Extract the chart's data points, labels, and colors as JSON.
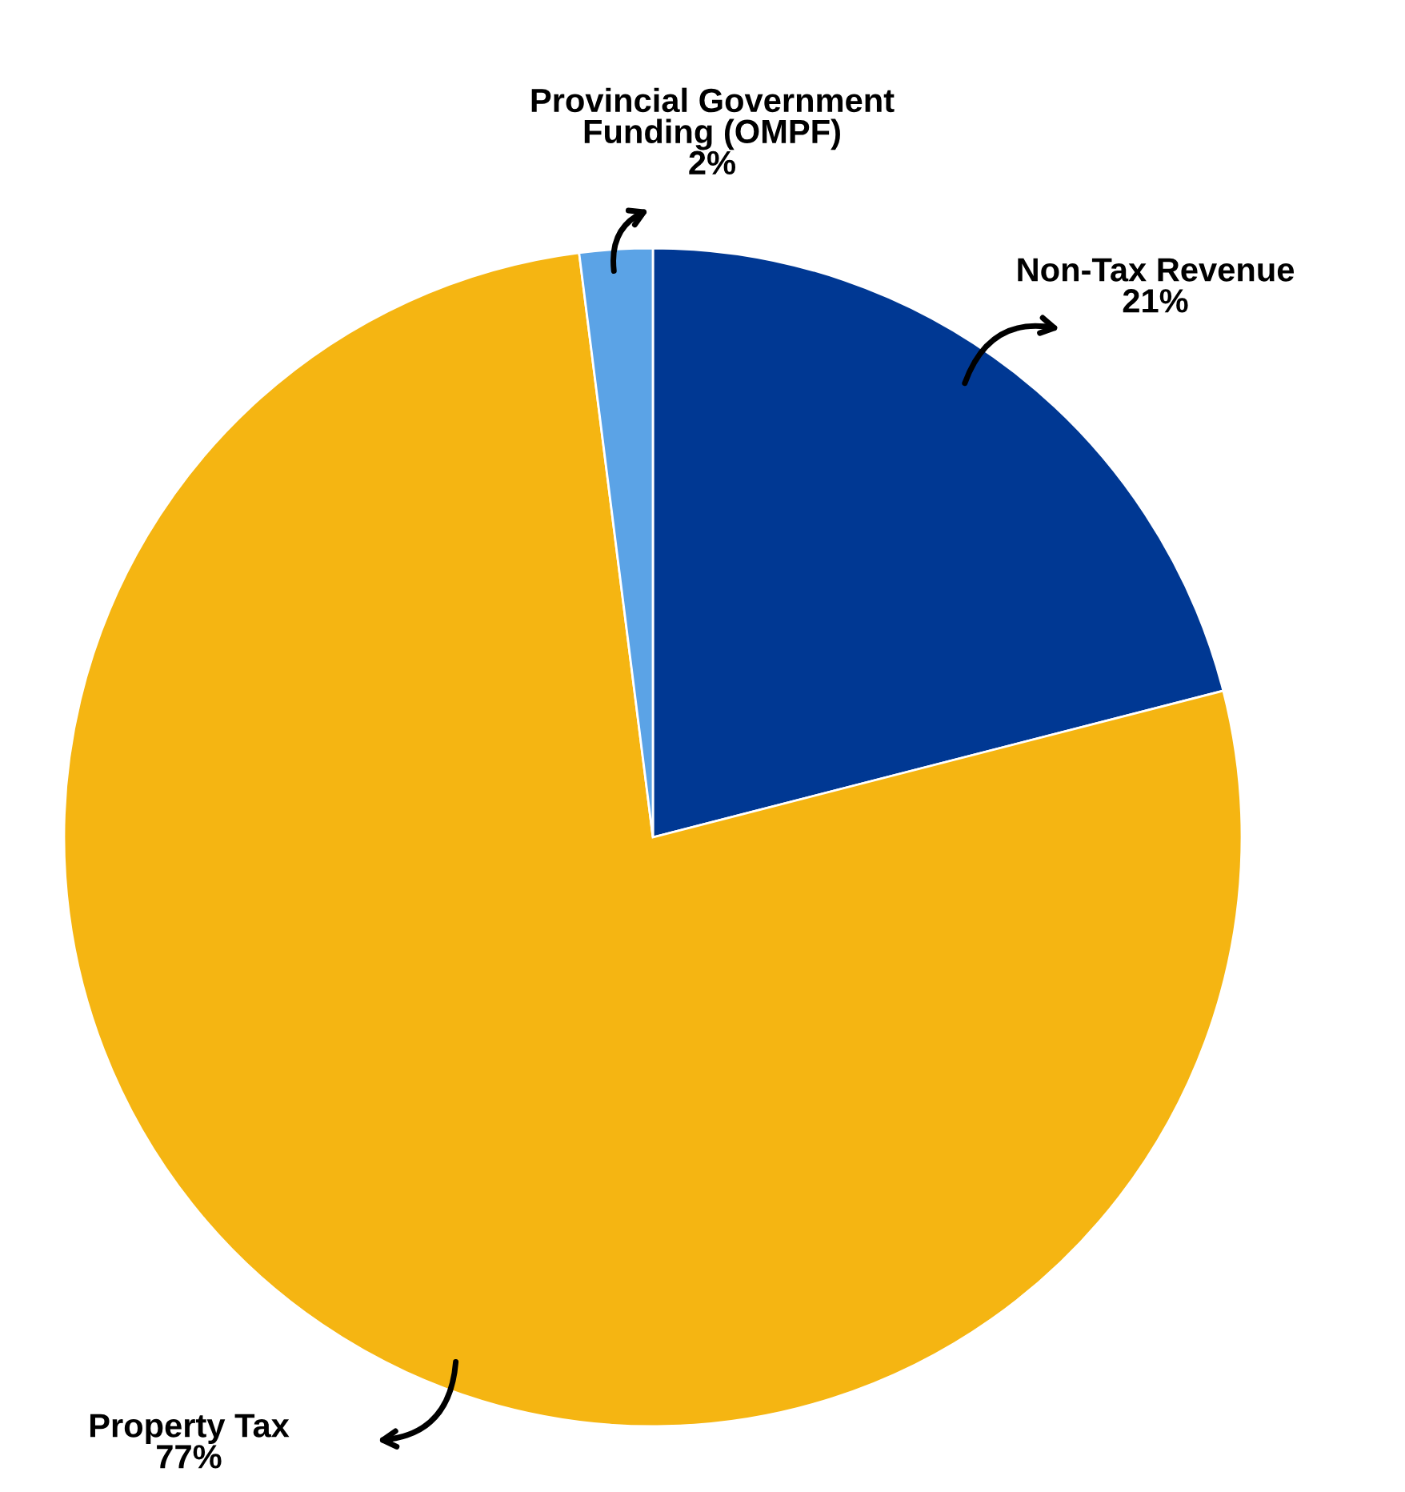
{
  "chart_data": {
    "type": "pie",
    "categories": [
      "Non-Tax Revenue",
      "Property Tax",
      "Provincial Government\nFunding (OMPF)"
    ],
    "values": [
      21,
      77,
      2
    ],
    "value_labels": [
      "21%",
      "77%",
      "2%"
    ],
    "colors": [
      "#003893",
      "#f5b512",
      "#5ba3e6"
    ]
  }
}
